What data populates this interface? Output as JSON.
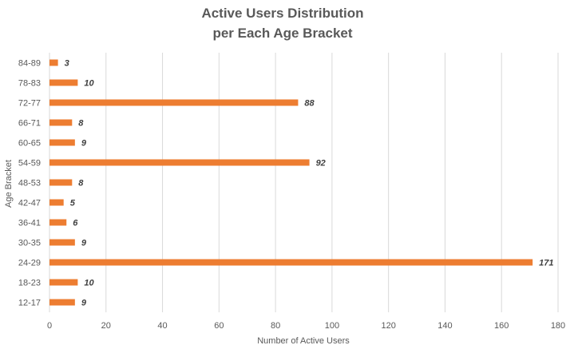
{
  "chart_data": {
    "type": "bar",
    "orientation": "horizontal",
    "title_lines": [
      "Active Users Distribution",
      "per Each Age Bracket"
    ],
    "xlabel": "Number of Active Users",
    "ylabel": "Age Bracket",
    "categories": [
      "12-17",
      "18-23",
      "24-29",
      "30-35",
      "36-41",
      "42-47",
      "48-53",
      "54-59",
      "60-65",
      "66-71",
      "72-77",
      "78-83",
      "84-89"
    ],
    "values": [
      9,
      10,
      171,
      9,
      6,
      5,
      8,
      92,
      9,
      8,
      88,
      10,
      3
    ],
    "xlim": [
      0,
      180
    ],
    "x_ticks": [
      0,
      20,
      40,
      60,
      80,
      100,
      120,
      140,
      160,
      180
    ],
    "grid": true,
    "colors": {
      "bar": "#ED7D31",
      "grid": "#D9D9D9",
      "text": "#595959",
      "label": "#404040"
    },
    "data_labels": true,
    "legend": "none"
  }
}
